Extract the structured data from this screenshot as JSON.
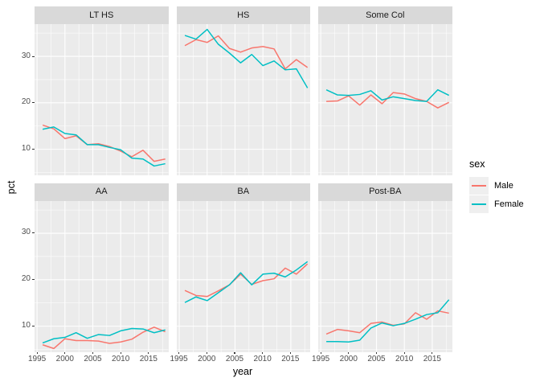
{
  "chart_data": {
    "type": "line",
    "title": "",
    "xlabel": "year",
    "ylabel": "pct",
    "x": [
      1996,
      1998,
      2000,
      2002,
      2004,
      2006,
      2008,
      2010,
      2012,
      2014,
      2016,
      2018
    ],
    "x_major_ticks": [
      1995,
      2000,
      2005,
      2010,
      2015
    ],
    "x_minor_ticks": [
      1997.5,
      2002.5,
      2007.5,
      2012.5,
      2017.5
    ],
    "y_major_ticks": [
      10,
      20,
      30
    ],
    "y_minor_ticks": [
      5,
      15,
      25,
      35
    ],
    "xlim": [
      1994.55,
      2018.55
    ],
    "ylim": [
      4.4,
      36.93
    ],
    "grid": true,
    "legend": {
      "title": "sex",
      "position": "right",
      "entries": [
        {
          "label": "Male",
          "color": "#F8766D"
        },
        {
          "label": "Female",
          "color": "#00BFC4"
        }
      ]
    },
    "facets": [
      {
        "name": "LT HS",
        "series": [
          {
            "name": "Male",
            "color": "#F8766D",
            "values": [
              15.2,
              14.4,
              12.3,
              12.9,
              11.0,
              11.2,
              10.6,
              9.6,
              8.4,
              9.8,
              7.4,
              7.9
            ]
          },
          {
            "name": "Female",
            "color": "#00BFC4",
            "values": [
              14.3,
              14.8,
              13.4,
              13.1,
              11.0,
              11.0,
              10.4,
              9.9,
              8.1,
              7.9,
              6.4,
              6.9
            ]
          }
        ]
      },
      {
        "name": "HS",
        "series": [
          {
            "name": "Male",
            "color": "#F8766D",
            "values": [
              32.3,
              33.6,
              33.0,
              34.4,
              31.7,
              30.9,
              31.8,
              32.1,
              31.6,
              27.3,
              29.3,
              27.6
            ]
          },
          {
            "name": "Female",
            "color": "#00BFC4",
            "values": [
              34.5,
              33.7,
              35.8,
              32.6,
              30.7,
              28.6,
              30.4,
              28.0,
              29.0,
              27.1,
              27.3,
              23.2
            ]
          }
        ]
      },
      {
        "name": "Some Col",
        "series": [
          {
            "name": "Male",
            "color": "#F8766D",
            "values": [
              20.3,
              20.4,
              21.5,
              19.5,
              21.7,
              19.8,
              22.2,
              21.9,
              20.9,
              20.3,
              18.9,
              20.1
            ]
          },
          {
            "name": "Female",
            "color": "#00BFC4",
            "values": [
              22.8,
              21.7,
              21.6,
              21.8,
              22.6,
              20.6,
              21.3,
              20.9,
              20.5,
              20.3,
              22.8,
              21.6
            ]
          }
        ]
      },
      {
        "name": "AA",
        "series": [
          {
            "name": "Male",
            "color": "#F8766D",
            "values": [
              6.0,
              5.2,
              7.3,
              6.9,
              6.9,
              6.8,
              6.3,
              6.6,
              7.2,
              8.7,
              9.8,
              8.8
            ]
          },
          {
            "name": "Female",
            "color": "#00BFC4",
            "values": [
              6.4,
              7.3,
              7.6,
              8.6,
              7.4,
              8.2,
              8.0,
              9.0,
              9.5,
              9.4,
              8.6,
              9.2
            ]
          }
        ]
      },
      {
        "name": "BA",
        "series": [
          {
            "name": "Male",
            "color": "#F8766D",
            "values": [
              17.7,
              16.6,
              16.4,
              17.6,
              18.9,
              21.2,
              19.0,
              19.8,
              20.2,
              22.5,
              21.2,
              23.4
            ]
          },
          {
            "name": "Female",
            "color": "#00BFC4",
            "values": [
              15.1,
              16.3,
              15.5,
              17.2,
              18.9,
              21.5,
              18.9,
              21.2,
              21.4,
              20.6,
              22.1,
              23.9
            ]
          }
        ]
      },
      {
        "name": "Post-BA",
        "series": [
          {
            "name": "Male",
            "color": "#F8766D",
            "values": [
              8.3,
              9.3,
              9.0,
              8.6,
              10.6,
              10.9,
              10.2,
              10.5,
              12.9,
              11.5,
              13.3,
              12.8
            ]
          },
          {
            "name": "Female",
            "color": "#00BFC4",
            "values": [
              6.7,
              6.7,
              6.6,
              7.0,
              9.6,
              10.7,
              10.1,
              10.6,
              11.5,
              12.5,
              12.9,
              15.7
            ]
          }
        ]
      }
    ]
  },
  "theme": {
    "figure_bg": "#FFFFFF",
    "panel_bg": "#EBEBEB",
    "grid_color": "#FFFFFF",
    "strip_bg": "#D9D9D9",
    "strip_text": "#1A1A1A",
    "axis_text": "#4D4D4D",
    "tick_mark": "#333333",
    "legend_key_bg": "#EFEFEF"
  }
}
